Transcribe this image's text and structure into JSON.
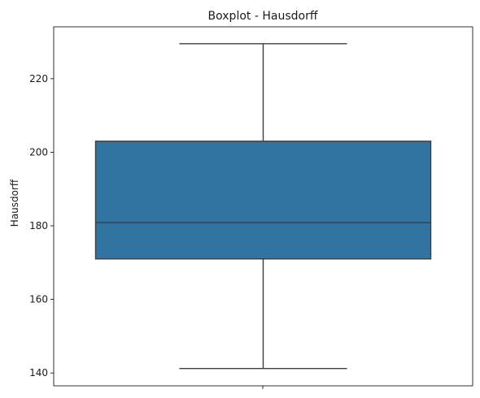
{
  "chart_data": {
    "type": "boxplot",
    "title": "Boxplot - Hausdorff",
    "xlabel": "",
    "ylabel": "Hausdorff",
    "ylim": [
      136.5,
      234.1
    ],
    "yticks": [
      140,
      160,
      180,
      200,
      220
    ],
    "grid": false,
    "box": {
      "whisker_low": 141.2,
      "q1": 171.0,
      "median": 180.9,
      "q3": 203.0,
      "whisker_high": 229.5
    },
    "colors": {
      "box_fill": "#3274a1",
      "line": "#3d3d3d"
    }
  }
}
